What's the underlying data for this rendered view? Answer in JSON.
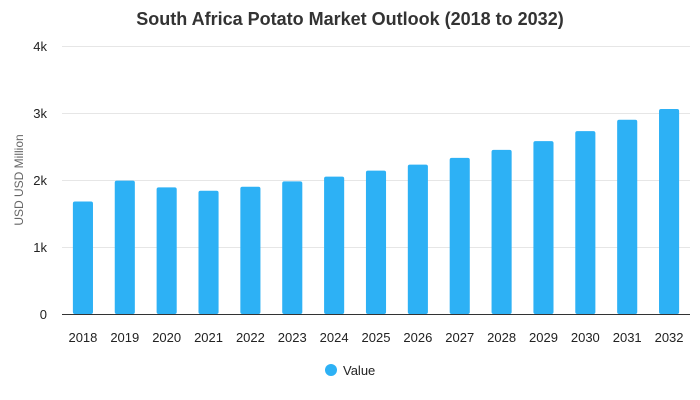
{
  "chart_data": {
    "type": "bar",
    "title": "South Africa Potato Market Outlook (2018 to 2032)",
    "xlabel": "",
    "ylabel": "USD USD Million",
    "categories": [
      "2018",
      "2019",
      "2020",
      "2021",
      "2022",
      "2023",
      "2024",
      "2025",
      "2026",
      "2027",
      "2028",
      "2029",
      "2030",
      "2031",
      "2032"
    ],
    "series": [
      {
        "name": "Value",
        "color": "#2db1f5",
        "values": [
          1680,
          1990,
          1890,
          1840,
          1900,
          1980,
          2050,
          2140,
          2230,
          2330,
          2450,
          2580,
          2730,
          2900,
          3060
        ]
      }
    ],
    "ylim": [
      0,
      4000
    ],
    "yticks": [
      {
        "value": 0,
        "label": "0"
      },
      {
        "value": 1000,
        "label": "1k"
      },
      {
        "value": 2000,
        "label": "2k"
      },
      {
        "value": 3000,
        "label": "3k"
      },
      {
        "value": 4000,
        "label": "4k"
      }
    ],
    "grid": true,
    "legend_position": "bottom"
  }
}
